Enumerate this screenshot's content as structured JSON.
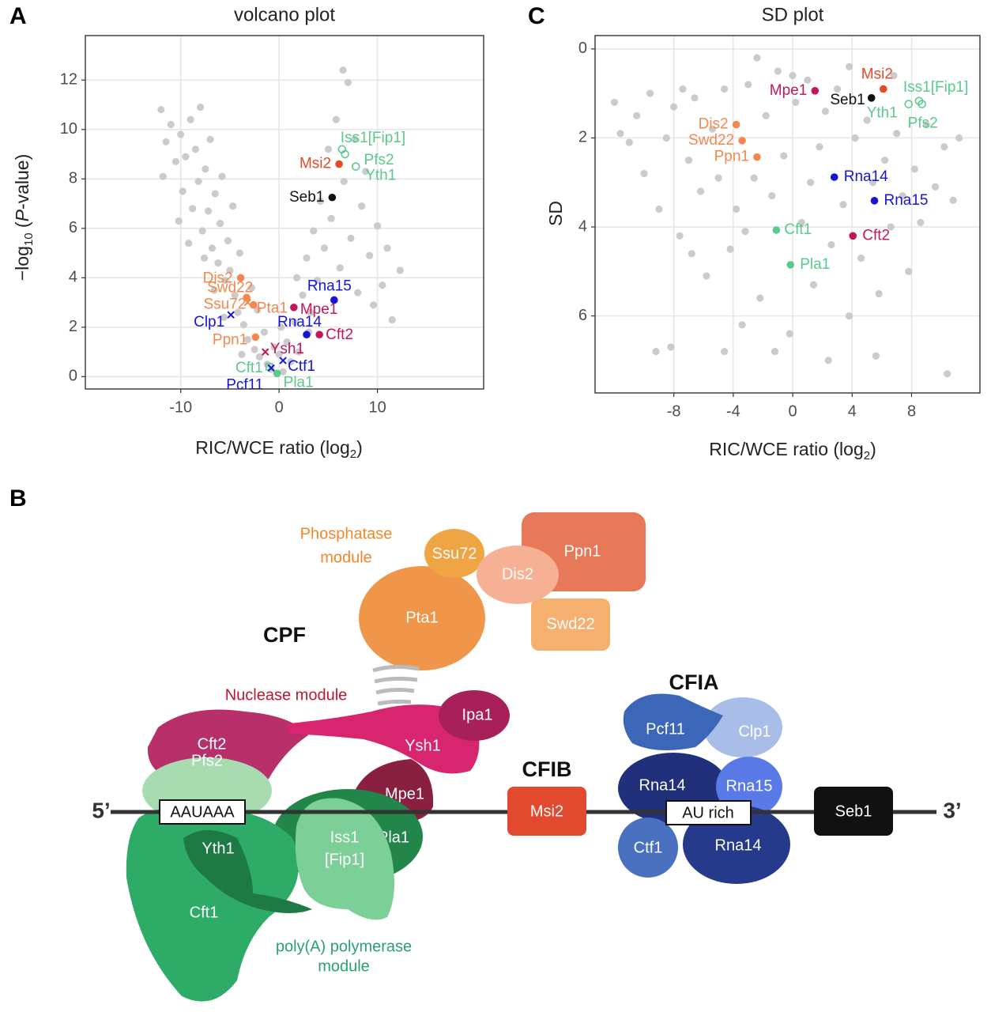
{
  "chart_data": [
    {
      "type": "scatter",
      "panel": "A",
      "title": "volcano plot",
      "x_label": [
        "RIC/WCE ratio (log",
        "2",
        ")"
      ],
      "y_label": [
        "−log",
        "10",
        " (",
        "P",
        "-value)"
      ],
      "xlim": [
        -19.7,
        20.8
      ],
      "ylim": [
        -0.5,
        13.8
      ],
      "xticks": [
        -10,
        0,
        10
      ],
      "yticks": [
        0,
        2,
        4,
        6,
        8,
        10,
        12
      ],
      "grid": true,
      "background_points": {
        "color": "#cbcbcb",
        "x": [
          -12,
          -11.5,
          -11,
          -10.5,
          -10,
          -9.8,
          -9.5,
          -9,
          -8.8,
          -8.5,
          -8.2,
          -8,
          -7.8,
          -7.5,
          -7.2,
          -7,
          -6.8,
          -6.5,
          -6.2,
          -6,
          -5.8,
          -5.5,
          -5.2,
          -5,
          -4.7,
          -4.5,
          -4.2,
          -4,
          -3.6,
          -3.2,
          -2.8,
          -2.5,
          -2,
          -1.5,
          -1.2,
          -0.8,
          -0.5,
          0,
          0.4,
          0.8,
          1.2,
          1.6,
          2,
          2.4,
          2.8,
          3.2,
          3.5,
          3.9,
          4.2,
          4.6,
          5,
          5.3,
          5.8,
          6.2,
          6.6,
          7,
          7.3,
          7.7,
          8,
          8.4,
          8.8,
          9.2,
          9.6,
          10,
          10.5,
          11,
          11.5,
          12.3,
          6.5,
          -11.8,
          -10.2,
          -9.2,
          -7.6,
          -6.6,
          -5.6,
          -3.8,
          -2.2,
          0.2,
          1.8,
          3
        ],
        "y": [
          10.8,
          9.5,
          10.2,
          8.7,
          9.8,
          7.5,
          8.9,
          10.4,
          6.8,
          9.2,
          7.9,
          10.9,
          5.9,
          8.4,
          6.7,
          9.6,
          5.2,
          7.4,
          4.6,
          6.2,
          8.1,
          3.9,
          5.5,
          4.3,
          6.9,
          3.3,
          2.6,
          5,
          2.1,
          1.5,
          3.6,
          1.1,
          0.8,
          1.8,
          0.5,
          0.3,
          1.2,
          0.9,
          0.2,
          1.4,
          0.6,
          2.2,
          1,
          3.3,
          4.8,
          2.6,
          5.9,
          3.9,
          7.1,
          5.2,
          9.2,
          6.4,
          10.4,
          4.4,
          7.9,
          11.9,
          5.6,
          9.6,
          3.4,
          6.9,
          8.3,
          4.9,
          2.9,
          6.1,
          3.7,
          5.2,
          2.3,
          4.3,
          12.4,
          8.1,
          6.3,
          5.4,
          4.8,
          3.5,
          2.4,
          0.9,
          2.7,
          2,
          4,
          1.8
        ]
      },
      "points": [
        {
          "label": "Iss1[Fip1]",
          "x": 6.4,
          "y": 9.2,
          "color": "#5cc98c",
          "marker": "open-circle"
        },
        {
          "label": "Pfs2",
          "x": 6.7,
          "y": 9.0,
          "color": "#5cc98c",
          "marker": "open-circle"
        },
        {
          "label": "Yth1",
          "x": 7.8,
          "y": 8.5,
          "color": "#5cc98c",
          "marker": "open-circle"
        },
        {
          "label": "Msi2",
          "x": 6.1,
          "y": 8.6,
          "color": "#e34a26",
          "marker": "dot"
        },
        {
          "label": "Seb1",
          "x": 5.4,
          "y": 7.25,
          "color": "#111111",
          "marker": "dot"
        },
        {
          "label": "Rna15",
          "x": 5.6,
          "y": 3.1,
          "color": "#1515d6",
          "marker": "dot"
        },
        {
          "label": "Mpe1",
          "x": 1.5,
          "y": 2.8,
          "color": "#c2185b",
          "marker": "dot"
        },
        {
          "label": "Rna14",
          "x": 2.8,
          "y": 1.7,
          "color": "#1515d6",
          "marker": "dot"
        },
        {
          "label": "Cft2",
          "x": 4.1,
          "y": 1.7,
          "color": "#c2185b",
          "marker": "dot"
        },
        {
          "label": "Ysh1",
          "x": -1.4,
          "y": 1.0,
          "color": "#c2185b",
          "marker": "cross"
        },
        {
          "label": "Ctf1",
          "x": 0.4,
          "y": 0.65,
          "color": "#1515d6",
          "marker": "cross"
        },
        {
          "label": "Cft1",
          "x": -1.0,
          "y": 0.4,
          "color": "#5cc98c",
          "marker": "open-square"
        },
        {
          "label": "Pcf11",
          "x": -0.8,
          "y": 0.35,
          "color": "#1515d6",
          "marker": "cross"
        },
        {
          "label": "Pla1",
          "x": -0.2,
          "y": 0.13,
          "color": "#5cc98c",
          "marker": "dot"
        },
        {
          "label": "Dis2",
          "x": -3.9,
          "y": 4.0,
          "color": "#f4874f",
          "marker": "dot"
        },
        {
          "label": "Swd22",
          "x": -3.3,
          "y": 3.2,
          "color": "#f4874f",
          "marker": "dot"
        },
        {
          "label": "Ssu72",
          "x": -3.2,
          "y": 3.0,
          "color": "#f4874f",
          "marker": "cross"
        },
        {
          "label": "Pta1",
          "x": -2.6,
          "y": 2.9,
          "color": "#f4874f",
          "marker": "dot"
        },
        {
          "label": "Clp1",
          "x": -4.9,
          "y": 2.5,
          "color": "#1515d6",
          "marker": "cross"
        },
        {
          "label": "Ppn1",
          "x": -2.4,
          "y": 1.6,
          "color": "#f4874f",
          "marker": "dot"
        }
      ]
    },
    {
      "type": "scatter",
      "panel": "C",
      "title": "SD plot",
      "x_label": [
        "RIC/WCE ratio (log",
        "2",
        ")"
      ],
      "y_label": [
        "SD"
      ],
      "xlim": [
        -13.3,
        12.6
      ],
      "ylim": [
        7.73,
        -0.3
      ],
      "xticks": [
        -8,
        -4,
        0,
        4,
        8
      ],
      "yticks": [
        0,
        2,
        4,
        6
      ],
      "grid": true,
      "background_points": {
        "color": "#cbcbcb",
        "x": [
          -12,
          -11,
          -10.5,
          -10,
          -9.6,
          -9,
          -8.5,
          -8,
          -7.6,
          -7,
          -6.6,
          -6.2,
          -5.8,
          -5.4,
          -5,
          -4.6,
          -4.2,
          -3.8,
          -3.4,
          -3,
          -2.6,
          -2.2,
          -1.8,
          -1.4,
          -1,
          -0.6,
          -0.2,
          0.2,
          0.6,
          1,
          1.4,
          1.8,
          2.2,
          2.6,
          3,
          3.4,
          3.8,
          4.2,
          4.6,
          5,
          5.4,
          5.8,
          6.2,
          6.6,
          7,
          7.4,
          7.8,
          8.2,
          8.6,
          9,
          9.6,
          10.2,
          10.8,
          11.2,
          10.4,
          -9.2,
          -8.2,
          -4.6,
          -1.2,
          2.4,
          5.6,
          -2.4,
          0,
          3.8,
          -6.8,
          -11.6,
          -7.4,
          6.8,
          1.2,
          -3.2
        ],
        "y": [
          1.2,
          2.1,
          1.5,
          2.8,
          1,
          3.6,
          2,
          1.3,
          4.2,
          2.5,
          1.1,
          3.2,
          5.1,
          1.8,
          2.9,
          0.9,
          4.5,
          3.6,
          6.2,
          0.8,
          2.9,
          5.6,
          1.5,
          3.3,
          0.5,
          2.4,
          6.4,
          1.2,
          3.9,
          0.7,
          5.3,
          2.2,
          1.4,
          4.4,
          0.9,
          3.5,
          6,
          2,
          4.7,
          1.6,
          3,
          5.5,
          2.5,
          4,
          1.9,
          3.3,
          5,
          2.7,
          3.9,
          1.7,
          3.1,
          2.2,
          3.4,
          2,
          7.3,
          6.8,
          6.7,
          6.8,
          6.8,
          7,
          6.9,
          0.2,
          0.6,
          0.4,
          4.6,
          1.9,
          0.9,
          0.6,
          3,
          4.1
        ]
      },
      "points": [
        {
          "label": "Msi2",
          "x": 6.1,
          "y": 0.9,
          "color": "#e34a26",
          "marker": "dot"
        },
        {
          "label": "Iss1[Fip1]",
          "x": 8.5,
          "y": 1.17,
          "color": "#5cc98c",
          "marker": "open-circle"
        },
        {
          "label": "Pfs2",
          "x": 8.7,
          "y": 1.24,
          "color": "#5cc98c",
          "marker": "open-circle"
        },
        {
          "label": "Yth1",
          "x": 7.8,
          "y": 1.24,
          "color": "#5cc98c",
          "marker": "open-circle"
        },
        {
          "label": "Seb1",
          "x": 5.3,
          "y": 1.1,
          "color": "#111111",
          "marker": "dot"
        },
        {
          "label": "Mpe1",
          "x": 1.5,
          "y": 0.94,
          "color": "#c2185b",
          "marker": "dot"
        },
        {
          "label": "Dis2",
          "x": -3.8,
          "y": 1.7,
          "color": "#f4874f",
          "marker": "dot"
        },
        {
          "label": "Swd22",
          "x": -3.4,
          "y": 2.06,
          "color": "#f4874f",
          "marker": "dot"
        },
        {
          "label": "Ppn1",
          "x": -2.4,
          "y": 2.43,
          "color": "#f4874f",
          "marker": "dot"
        },
        {
          "label": "Rna14",
          "x": 2.8,
          "y": 2.88,
          "color": "#1515d6",
          "marker": "dot"
        },
        {
          "label": "Rna15",
          "x": 5.5,
          "y": 3.41,
          "color": "#1515d6",
          "marker": "dot"
        },
        {
          "label": "Cft1",
          "x": -1.1,
          "y": 4.07,
          "color": "#5cc98c",
          "marker": "dot"
        },
        {
          "label": "Cft2",
          "x": 4.05,
          "y": 4.2,
          "color": "#c2185b",
          "marker": "dot"
        },
        {
          "label": "Pla1",
          "x": -0.15,
          "y": 4.85,
          "color": "#5cc98c",
          "marker": "dot"
        }
      ]
    }
  ],
  "diagram": {
    "panel": "B",
    "phosphatase_module": [
      "Phosphatase",
      "module"
    ],
    "cpf": "CPF",
    "nuclease_module": "Nuclease module",
    "polya_module": [
      "poly(A) polymerase",
      "module"
    ],
    "cfia": "CFIA",
    "cfib": "CFIB",
    "five_prime": "5’",
    "three_prime": "3’",
    "aauaaa": "AAUAAA",
    "au_rich": "AU rich",
    "proteins": {
      "ppn1": "Ppn1",
      "ssu72": "Ssu72",
      "dis2": "Dis2",
      "pta1": "Pta1",
      "swd22": "Swd22",
      "ipa1": "Ipa1",
      "cft2": "Cft2",
      "ysh1": "Ysh1",
      "pfs2": "Pfs2",
      "mpe1": "Mpe1",
      "yth1": "Yth1",
      "iss1": [
        "Iss1",
        "[Fip1]"
      ],
      "pla1": "Pla1",
      "cft1": "Cft1",
      "msi2": "Msi2",
      "pcf11": "Pcf11",
      "clp1": "Clp1",
      "rna14_top": "Rna14",
      "rna15": "Rna15",
      "ctf1": "Ctf1",
      "rna14_bottom": "Rna14",
      "seb1": "Seb1"
    }
  }
}
